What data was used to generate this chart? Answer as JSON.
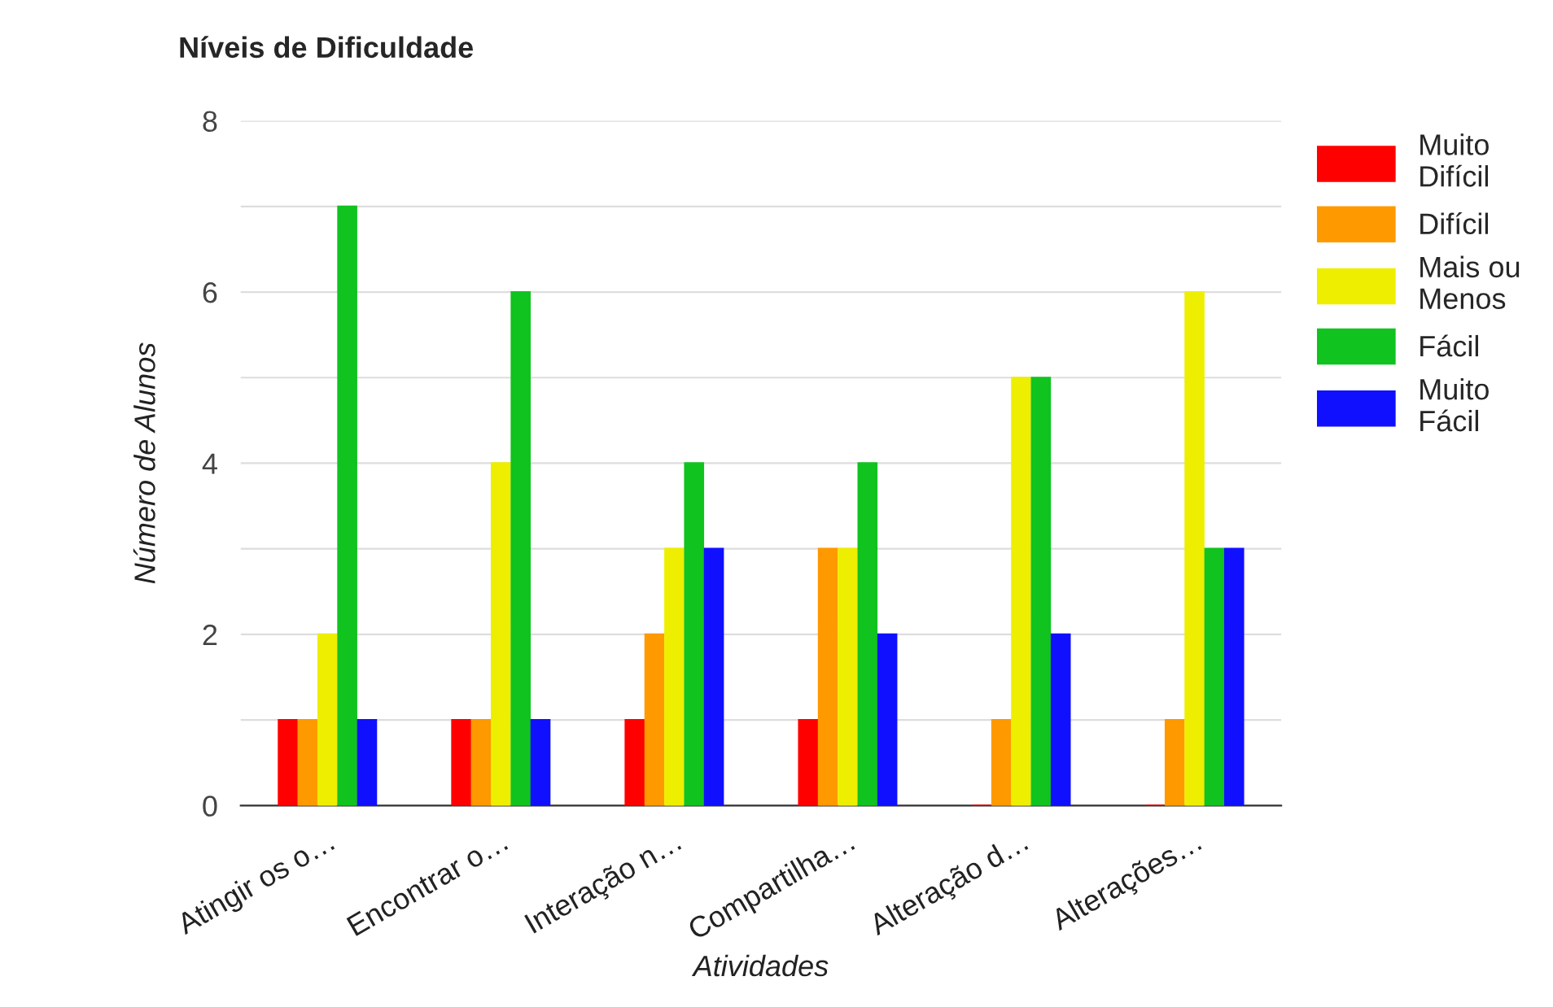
{
  "chart_data": {
    "type": "bar",
    "title": "Níveis de Dificuldade",
    "xlabel": "Atividades",
    "ylabel": "Número de Alunos",
    "categories": [
      "Atingir os o…",
      "Encontrar o…",
      "Interação n…",
      "Compartilha…",
      "Alteração d…",
      "Alterações…"
    ],
    "series": [
      {
        "name": "Muito Difícil",
        "color": "#ff0000",
        "values": [
          1,
          1,
          1,
          1,
          0,
          0
        ]
      },
      {
        "name": "Difícil",
        "color": "#ff9900",
        "values": [
          1,
          1,
          2,
          3,
          1,
          1
        ]
      },
      {
        "name": "Mais ou Menos",
        "color": "#eeee00",
        "values": [
          2,
          4,
          3,
          3,
          5,
          6
        ]
      },
      {
        "name": "Fácil",
        "color": "#10c31f",
        "values": [
          7,
          6,
          4,
          4,
          5,
          3
        ]
      },
      {
        "name": "Muito Fácil",
        "color": "#1010ff",
        "values": [
          1,
          1,
          3,
          2,
          2,
          3
        ]
      }
    ],
    "ylim": [
      0,
      8
    ],
    "yticks": [
      0,
      {
        "value": 1,
        "label": null
      },
      2,
      {
        "value": 3,
        "label": null
      },
      4,
      {
        "value": 5,
        "label": null
      },
      6,
      {
        "value": 7,
        "label": null
      },
      8
    ],
    "grid": "y",
    "legend": "right"
  }
}
